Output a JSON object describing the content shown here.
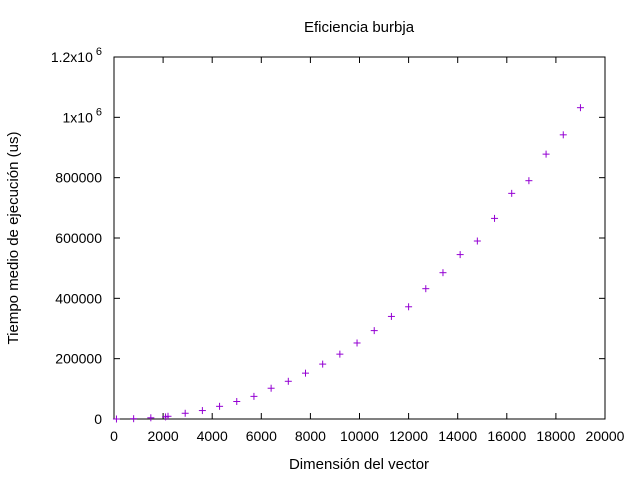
{
  "chart_data": {
    "type": "scatter",
    "title": "Eficiencia burbja",
    "xlabel": "Dimensión del vector",
    "ylabel": "Tiempo medio de ejecución (us)",
    "xlim": [
      0,
      20000
    ],
    "ylim": [
      0,
      1200000
    ],
    "x_ticks": [
      {
        "value": 0,
        "label": "0"
      },
      {
        "value": 2000,
        "label": "2000"
      },
      {
        "value": 4000,
        "label": "4000"
      },
      {
        "value": 6000,
        "label": "6000"
      },
      {
        "value": 8000,
        "label": "8000"
      },
      {
        "value": 10000,
        "label": "10000"
      },
      {
        "value": 12000,
        "label": "12000"
      },
      {
        "value": 14000,
        "label": "14000"
      },
      {
        "value": 16000,
        "label": "16000"
      },
      {
        "value": 18000,
        "label": "18000"
      },
      {
        "value": 20000,
        "label": "20000"
      }
    ],
    "y_ticks": [
      {
        "value": 0,
        "label": "0",
        "sup": ""
      },
      {
        "value": 200000,
        "label": "200000",
        "sup": ""
      },
      {
        "value": 400000,
        "label": "400000",
        "sup": ""
      },
      {
        "value": 600000,
        "label": "600000",
        "sup": ""
      },
      {
        "value": 800000,
        "label": "800000",
        "sup": ""
      },
      {
        "value": 1000000,
        "label": "1x10",
        "sup": "6"
      },
      {
        "value": 1200000,
        "label": "1.2x10",
        "sup": "6"
      }
    ],
    "grid": false,
    "marker": "+",
    "marker_color": "#9400d3",
    "series": [
      {
        "x": [
          100,
          800,
          1500,
          2100,
          2200,
          2900,
          3600,
          4300,
          5000,
          5700,
          6400,
          7100,
          7800,
          8500,
          9200,
          9900,
          10600,
          11300,
          12000,
          12700,
          13400,
          14100,
          14800,
          15500,
          16200,
          16900,
          17600,
          18300,
          19000
        ],
        "y": [
          0,
          1000,
          4000,
          7000,
          9000,
          19000,
          28000,
          42000,
          58000,
          75000,
          102000,
          125000,
          152000,
          182000,
          215000,
          252000,
          293000,
          340000,
          372000,
          432000,
          485000,
          545000,
          590000,
          665000,
          748000,
          790000,
          878000,
          942000,
          1032000
        ]
      }
    ]
  }
}
